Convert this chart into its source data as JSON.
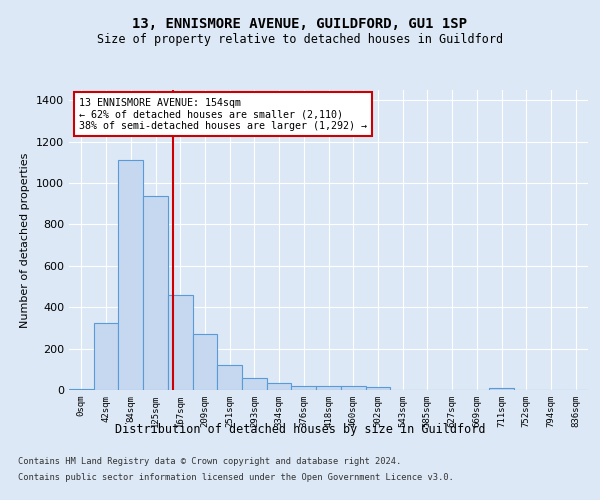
{
  "title": "13, ENNISMORE AVENUE, GUILDFORD, GU1 1SP",
  "subtitle": "Size of property relative to detached houses in Guildford",
  "xlabel": "Distribution of detached houses by size in Guildford",
  "ylabel": "Number of detached properties",
  "categories": [
    "0sqm",
    "42sqm",
    "84sqm",
    "125sqm",
    "167sqm",
    "209sqm",
    "251sqm",
    "293sqm",
    "334sqm",
    "376sqm",
    "418sqm",
    "460sqm",
    "502sqm",
    "543sqm",
    "585sqm",
    "627sqm",
    "669sqm",
    "711sqm",
    "752sqm",
    "794sqm",
    "836sqm"
  ],
  "bar_heights": [
    5,
    325,
    1110,
    940,
    460,
    270,
    120,
    60,
    35,
    20,
    20,
    20,
    15,
    0,
    0,
    0,
    0,
    10,
    0,
    0,
    0
  ],
  "bar_color": "#c5d8f0",
  "bar_edge_color": "#5b9bd5",
  "annotation_label": "13 ENNISMORE AVENUE: 154sqm",
  "annotation_line1": "← 62% of detached houses are smaller (2,110)",
  "annotation_line2": "38% of semi-detached houses are larger (1,292) →",
  "annotation_box_color": "#ffffff",
  "annotation_box_edge": "#cc0000",
  "vline_color": "#cc0000",
  "vline_x": 3.69,
  "ylim": [
    0,
    1450
  ],
  "yticks": [
    0,
    200,
    400,
    600,
    800,
    1000,
    1200,
    1400
  ],
  "footer_line1": "Contains HM Land Registry data © Crown copyright and database right 2024.",
  "footer_line2": "Contains public sector information licensed under the Open Government Licence v3.0.",
  "background_color": "#dce8f5",
  "plot_bg_color": "#dce8f5",
  "grid_color": "#ffffff"
}
